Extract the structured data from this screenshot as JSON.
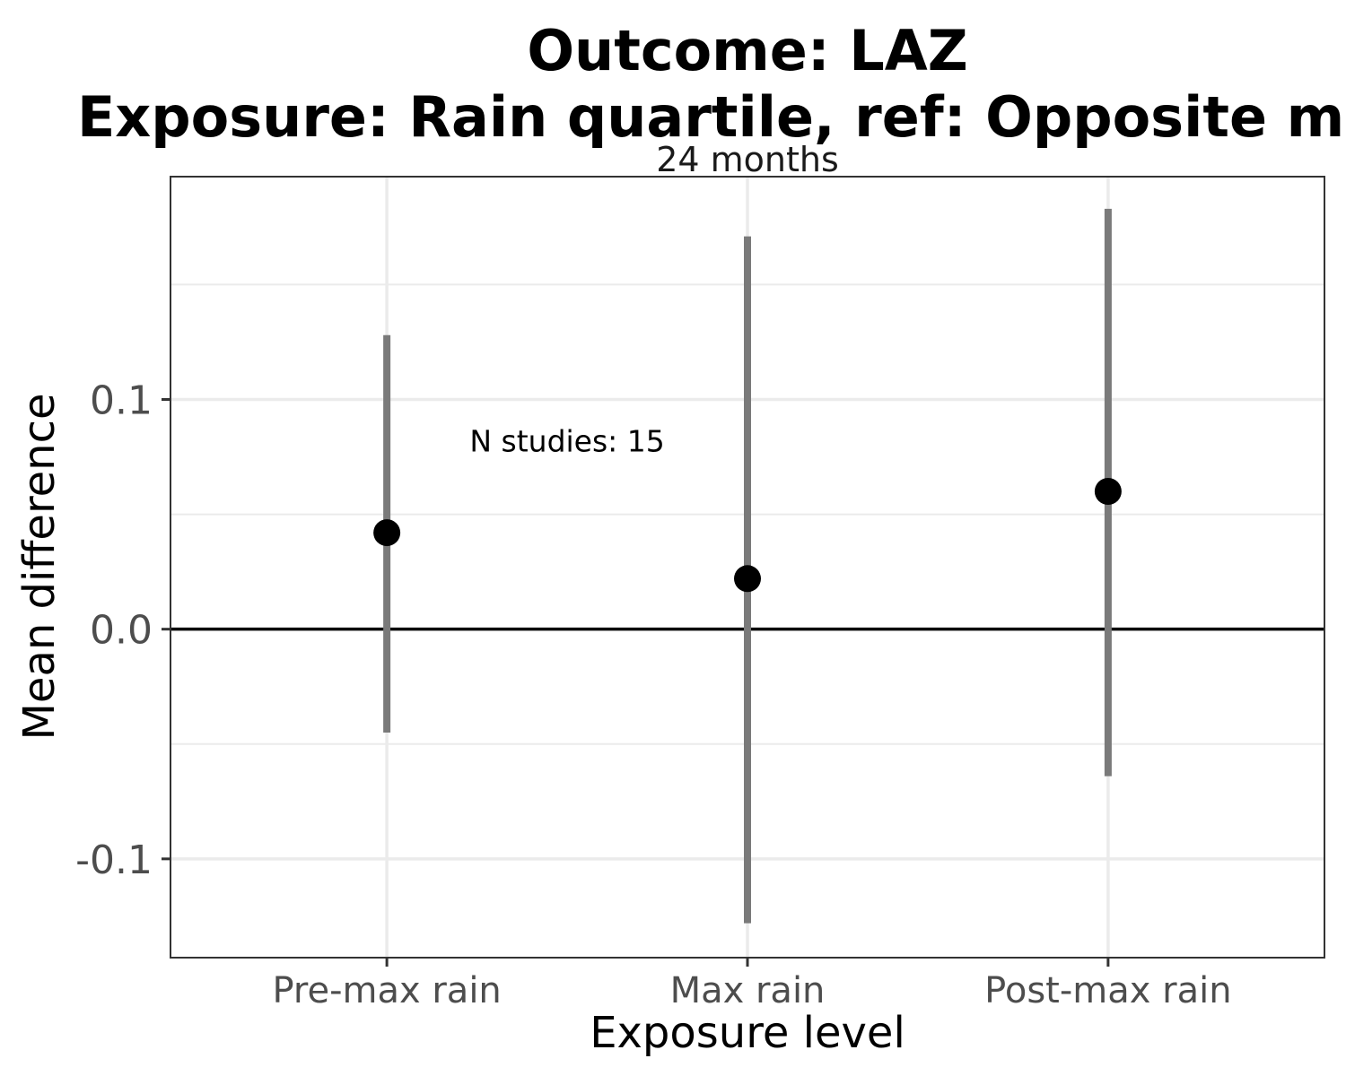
{
  "chart_data": {
    "type": "scatter",
    "title_lines": [
      "Outcome: LAZ",
      "Exposure: Rain quartile, ref: Opposite max"
    ],
    "facet_label": "24 months",
    "xlabel": "Exposure level",
    "ylabel": "Mean difference",
    "categories": [
      "Pre-max rain",
      "Max rain",
      "Post-max rain"
    ],
    "estimates": [
      0.042,
      0.022,
      0.06
    ],
    "ci_lower": [
      -0.045,
      -0.128,
      -0.064
    ],
    "ci_upper": [
      0.128,
      0.171,
      0.183
    ],
    "ylim": [
      -0.143,
      0.197
    ],
    "yticks": [
      -0.1,
      0.0,
      0.1
    ],
    "ytick_labels": [
      "-0.1",
      "0.0",
      "0.1"
    ],
    "minor_yticks": [
      -0.05,
      0.05,
      0.15
    ],
    "reference_line_y": 0,
    "annotation": {
      "text": "N studies: 15",
      "x_category": "Max rain",
      "x_offset": -0.5,
      "y": 0.082
    },
    "grid": true,
    "legend": "none",
    "colors": {
      "point": "#000000",
      "interval": "#7a7a7a",
      "grid": "#ebebeb",
      "reference": "#000000",
      "panel_border": "#333333"
    }
  }
}
